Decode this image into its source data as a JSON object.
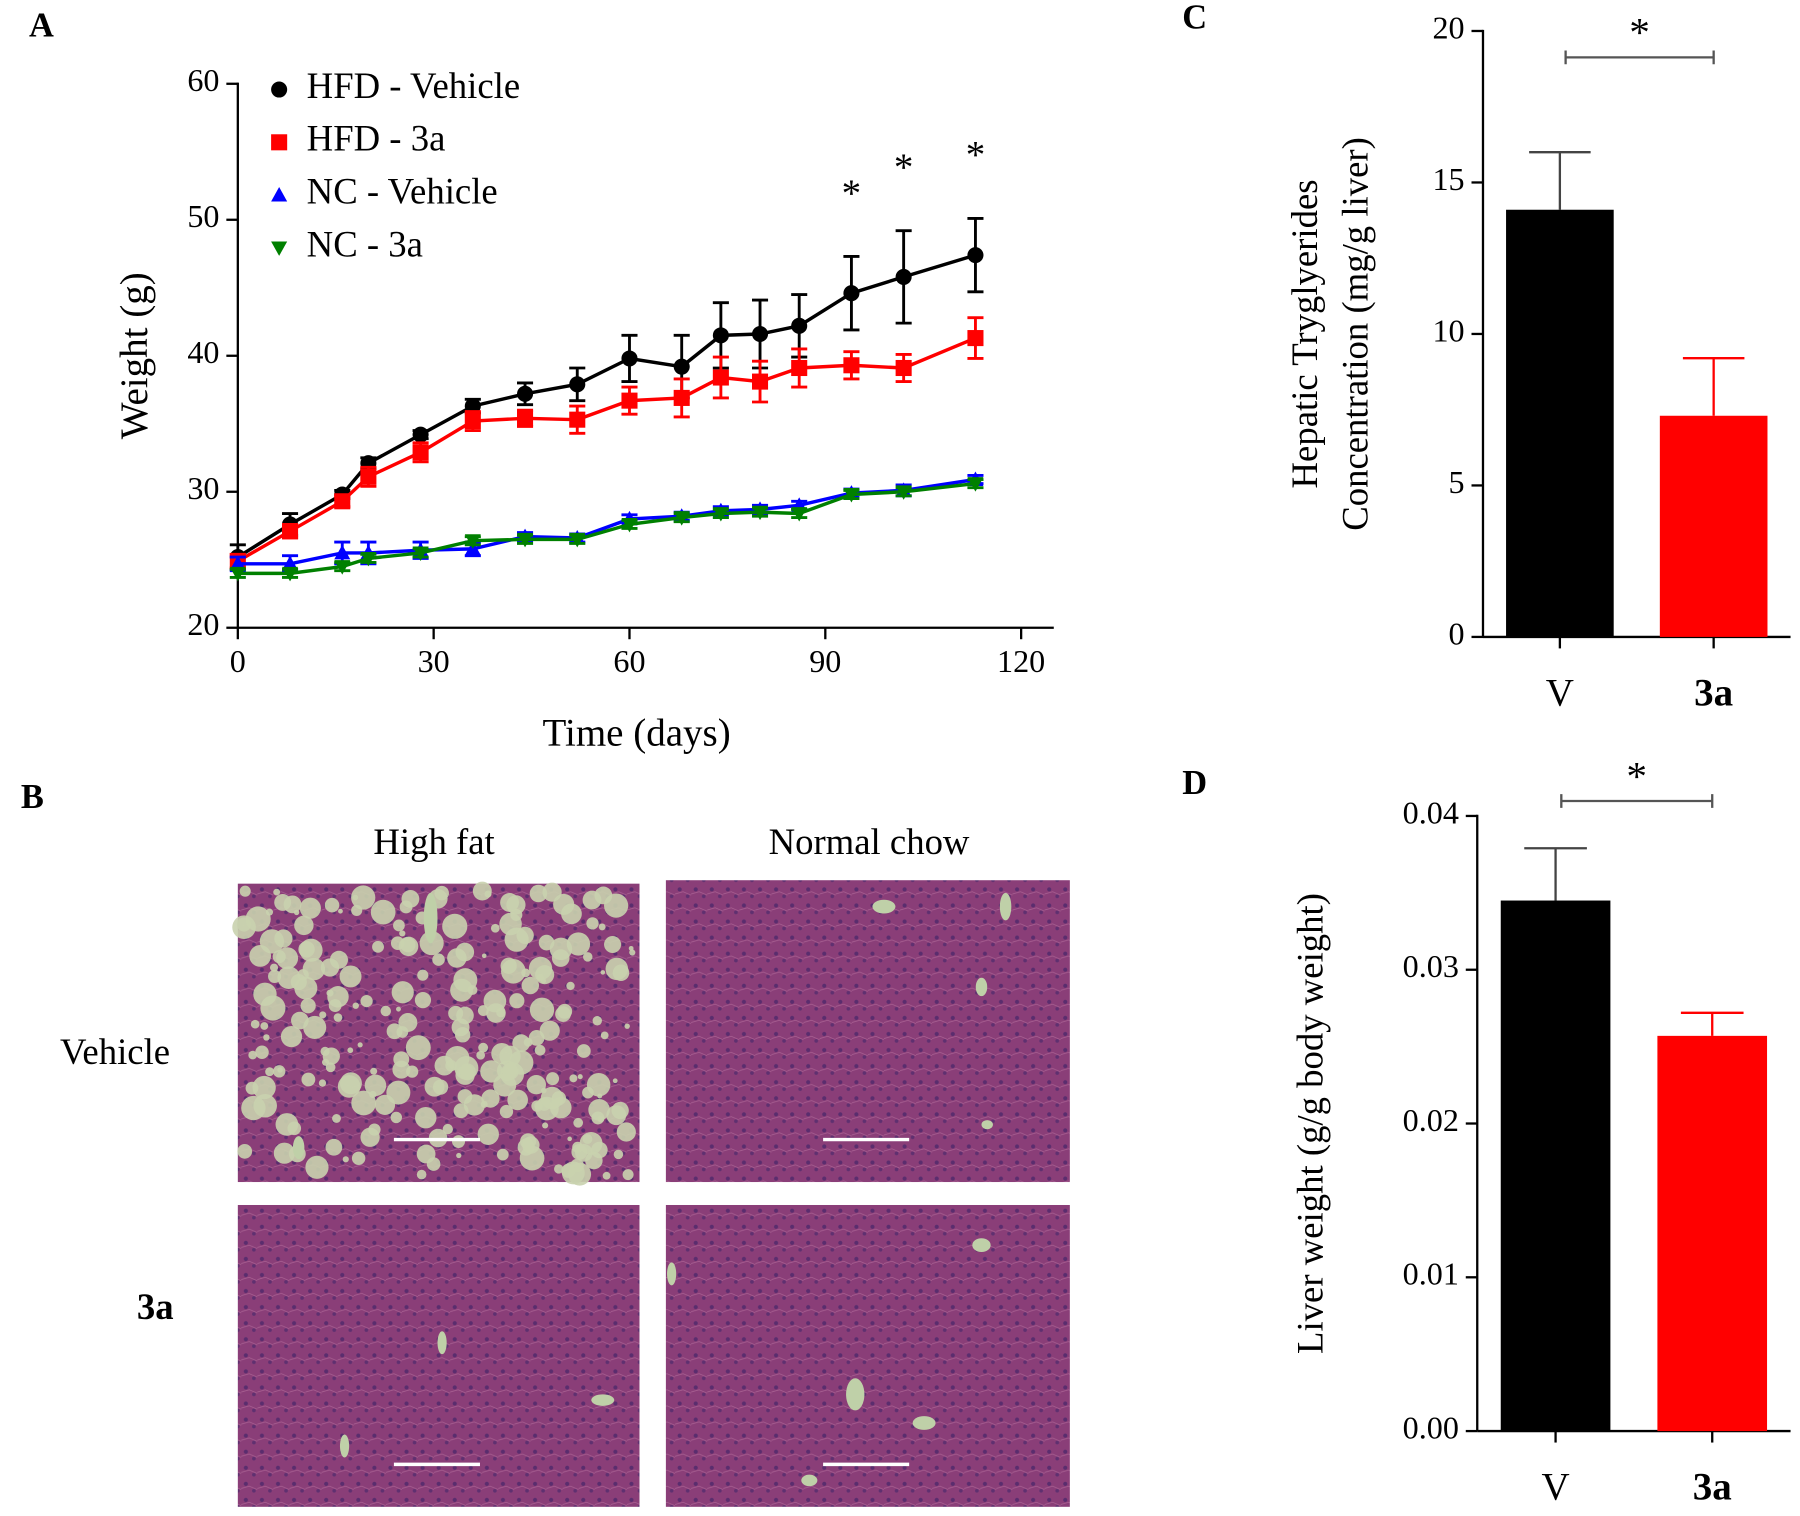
{
  "chart_data": [
    {
      "type": "line",
      "panel_label": "A",
      "xlabel": "Time (days)",
      "ylabel": "Weight (g)",
      "x": [
        0,
        8,
        16,
        20,
        28,
        36,
        44,
        52,
        60,
        68,
        74,
        80,
        86,
        94,
        102,
        113
      ],
      "xlim": [
        0,
        125
      ],
      "xticks": [
        0,
        30,
        60,
        90,
        120
      ],
      "ylim": [
        20,
        60
      ],
      "yticks": [
        20,
        30,
        40,
        50,
        60
      ],
      "legend": "top-left",
      "series": [
        {
          "name": "HFD - Vehicle",
          "color": "#000000",
          "marker": "circle",
          "values": [
            25.2,
            27.6,
            29.8,
            32.1,
            34.2,
            36.3,
            37.2,
            37.9,
            39.8,
            39.2,
            41.5,
            41.6,
            42.2,
            44.6,
            45.8,
            47.4
          ],
          "errors": [
            0.9,
            0.8,
            0.3,
            0.4,
            0.3,
            0.5,
            0.8,
            1.2,
            1.7,
            2.3,
            2.4,
            2.5,
            2.3,
            2.7,
            3.4,
            2.7
          ]
        },
        {
          "name": "HFD - 3a",
          "color": "#ff0000",
          "marker": "square",
          "values": [
            24.9,
            27.1,
            29.3,
            31.1,
            32.9,
            35.2,
            35.4,
            35.3,
            36.7,
            36.9,
            38.4,
            38.1,
            39.1,
            39.3,
            39.1,
            41.3
          ],
          "errors": [
            0.5,
            0.5,
            0.4,
            0.7,
            0.7,
            0.7,
            0.6,
            1.0,
            1.0,
            1.4,
            1.5,
            1.5,
            1.4,
            1.0,
            1.0,
            1.5
          ]
        },
        {
          "name": "NC - Vehicle",
          "color": "#0000ff",
          "marker": "triangle-up",
          "values": [
            24.7,
            24.7,
            25.5,
            25.5,
            25.7,
            25.8,
            26.7,
            26.6,
            28.0,
            28.2,
            28.6,
            28.7,
            29.0,
            29.9,
            30.1,
            30.9
          ],
          "errors": [
            0.5,
            0.6,
            0.8,
            0.8,
            0.6,
            0.5,
            0.3,
            0.3,
            0.3,
            0.3,
            0.3,
            0.3,
            0.3,
            0.3,
            0.4,
            0.3
          ]
        },
        {
          "name": "NC - 3a",
          "color": "#008000",
          "marker": "triangle-down",
          "values": [
            24.0,
            24.0,
            24.5,
            25.1,
            25.5,
            26.4,
            26.5,
            26.5,
            27.6,
            28.1,
            28.4,
            28.5,
            28.4,
            29.8,
            30.0,
            30.6
          ],
          "errors": [
            0.3,
            0.3,
            0.3,
            0.3,
            0.3,
            0.3,
            0.3,
            0.3,
            0.3,
            0.3,
            0.3,
            0.3,
            0.3,
            0.3,
            0.3,
            0.3
          ]
        }
      ],
      "annotations": [
        {
          "x": 94,
          "text": "*"
        },
        {
          "x": 102,
          "text": "*"
        },
        {
          "x": 113,
          "text": "*"
        }
      ]
    },
    {
      "type": "bar",
      "panel_label": "C",
      "ylabel": [
        "Hepatic Tryglyerides",
        "Concentration (mg/g liver)"
      ],
      "categories": [
        "V",
        "3a"
      ],
      "category_bold": [
        false,
        true
      ],
      "values": [
        14.1,
        7.3
      ],
      "errors": [
        1.9,
        1.9
      ],
      "colors": [
        "#000000",
        "#ff0000"
      ],
      "ylim": [
        0,
        20
      ],
      "yticks": [
        0,
        5,
        10,
        15,
        20
      ],
      "significance": "*"
    },
    {
      "type": "bar",
      "panel_label": "D",
      "ylabel": [
        "Liver weight (g/g body weight)"
      ],
      "categories": [
        "V",
        "3a"
      ],
      "category_bold": [
        false,
        true
      ],
      "values": [
        0.0345,
        0.0257
      ],
      "errors": [
        0.0034,
        0.0015
      ],
      "colors": [
        "#000000",
        "#ff0000"
      ],
      "ylim": [
        0,
        0.04
      ],
      "yticks": [
        {
          "value": 0,
          "label": "0.00"
        },
        0.01,
        0.02,
        0.03,
        0.04
      ],
      "significance": "*"
    }
  ],
  "histology": {
    "panel_label": "B",
    "columns": [
      "High fat",
      "Normal chow"
    ],
    "rows": [
      "Vehicle",
      "3a"
    ]
  }
}
